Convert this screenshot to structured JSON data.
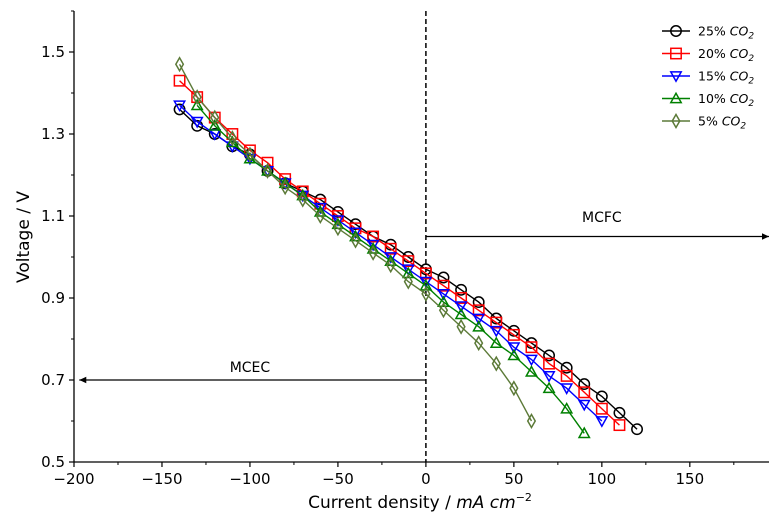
{
  "chart_data": {
    "type": "line",
    "xlabel": "Current density / ",
    "xlabel_unit": "mA cm",
    "xlabel_exp": "−2",
    "ylabel": "Voltage / V",
    "xlim": [
      -200,
      195
    ],
    "ylim": [
      0.5,
      1.6
    ],
    "x_ticks": [
      -200,
      -150,
      -100,
      -50,
      0,
      50,
      100,
      150
    ],
    "y_ticks": [
      0.5,
      0.7,
      0.9,
      1.1,
      1.3,
      1.5
    ],
    "x_tick_labels": [
      "−200",
      "−150",
      "−100",
      "−50",
      "0",
      "50",
      "100",
      "150"
    ],
    "y_tick_labels": [
      "0.5",
      "0.7",
      "0.9",
      "1.1",
      "1.3",
      "1.5"
    ],
    "grid": false,
    "legend_position": "top-right",
    "annotations": [
      {
        "text": "MCFC",
        "x": 100,
        "y": 1.085
      },
      {
        "text": "MCEC",
        "x": -100,
        "y": 0.72
      }
    ],
    "arrows": [
      {
        "from": [
          0,
          1.05
        ],
        "to": [
          195,
          1.05
        ]
      },
      {
        "from": [
          0,
          0.7
        ],
        "to": [
          -197,
          0.7
        ]
      }
    ],
    "vline": {
      "x": 0,
      "style": "dashed"
    },
    "series": [
      {
        "name": "25% ",
        "name_sub": "CO",
        "name_sub_index": "2",
        "marker": "circle",
        "color": "#000000",
        "x": [
          -140,
          -130,
          -120,
          -110,
          -100,
          -90,
          -80,
          -70,
          -60,
          -50,
          -40,
          -30,
          -20,
          -10,
          0,
          10,
          20,
          30,
          40,
          50,
          60,
          70,
          80,
          90,
          100,
          110,
          120
        ],
        "y": [
          1.36,
          1.32,
          1.3,
          1.27,
          1.25,
          1.21,
          1.18,
          1.16,
          1.14,
          1.11,
          1.08,
          1.05,
          1.03,
          1.0,
          0.97,
          0.95,
          0.92,
          0.89,
          0.85,
          0.82,
          0.79,
          0.76,
          0.73,
          0.69,
          0.66,
          0.62,
          0.58
        ]
      },
      {
        "name": "20% ",
        "name_sub": "CO",
        "name_sub_index": "2",
        "marker": "square",
        "color": "#ff0000",
        "x": [
          -140,
          -130,
          -120,
          -110,
          -100,
          -90,
          -80,
          -70,
          -60,
          -50,
          -40,
          -30,
          -20,
          -10,
          0,
          10,
          20,
          30,
          40,
          50,
          60,
          70,
          80,
          90,
          100,
          110
        ],
        "y": [
          1.43,
          1.39,
          1.34,
          1.3,
          1.26,
          1.23,
          1.19,
          1.16,
          1.13,
          1.1,
          1.07,
          1.05,
          1.02,
          0.99,
          0.96,
          0.93,
          0.9,
          0.87,
          0.84,
          0.81,
          0.78,
          0.74,
          0.71,
          0.67,
          0.63,
          0.59
        ]
      },
      {
        "name": "15% ",
        "name_sub": "CO",
        "name_sub_index": "2",
        "marker": "triangle-down",
        "color": "#0000ff",
        "x": [
          -140,
          -130,
          -120,
          -110,
          -100,
          -90,
          -80,
          -70,
          -60,
          -50,
          -40,
          -30,
          -20,
          -10,
          0,
          10,
          20,
          30,
          40,
          50,
          60,
          70,
          80,
          90,
          100
        ],
        "y": [
          1.37,
          1.33,
          1.3,
          1.27,
          1.24,
          1.21,
          1.18,
          1.15,
          1.12,
          1.09,
          1.06,
          1.03,
          1.0,
          0.97,
          0.94,
          0.91,
          0.88,
          0.85,
          0.82,
          0.78,
          0.75,
          0.71,
          0.68,
          0.64,
          0.6
        ]
      },
      {
        "name": "10% ",
        "name_sub": "CO",
        "name_sub_index": "2",
        "marker": "triangle-up",
        "color": "#008000",
        "x": [
          -130,
          -120,
          -110,
          -100,
          -90,
          -80,
          -70,
          -60,
          -50,
          -40,
          -30,
          -20,
          -10,
          0,
          10,
          20,
          30,
          40,
          50,
          60,
          70,
          80,
          90
        ],
        "y": [
          1.37,
          1.32,
          1.28,
          1.24,
          1.21,
          1.18,
          1.15,
          1.11,
          1.08,
          1.05,
          1.02,
          0.99,
          0.96,
          0.93,
          0.89,
          0.86,
          0.83,
          0.79,
          0.76,
          0.72,
          0.68,
          0.63,
          0.57
        ]
      },
      {
        "name": "5% ",
        "name_sub": "CO",
        "name_sub_index": "2",
        "marker": "diamond",
        "color": "#5c7a38",
        "x": [
          -140,
          -130,
          -120,
          -110,
          -100,
          -90,
          -80,
          -70,
          -60,
          -50,
          -40,
          -30,
          -20,
          -10,
          0,
          10,
          20,
          30,
          40,
          50,
          60
        ],
        "y": [
          1.47,
          1.39,
          1.34,
          1.29,
          1.25,
          1.21,
          1.17,
          1.14,
          1.1,
          1.07,
          1.04,
          1.01,
          0.98,
          0.94,
          0.91,
          0.87,
          0.83,
          0.79,
          0.74,
          0.68,
          0.6
        ]
      }
    ]
  }
}
